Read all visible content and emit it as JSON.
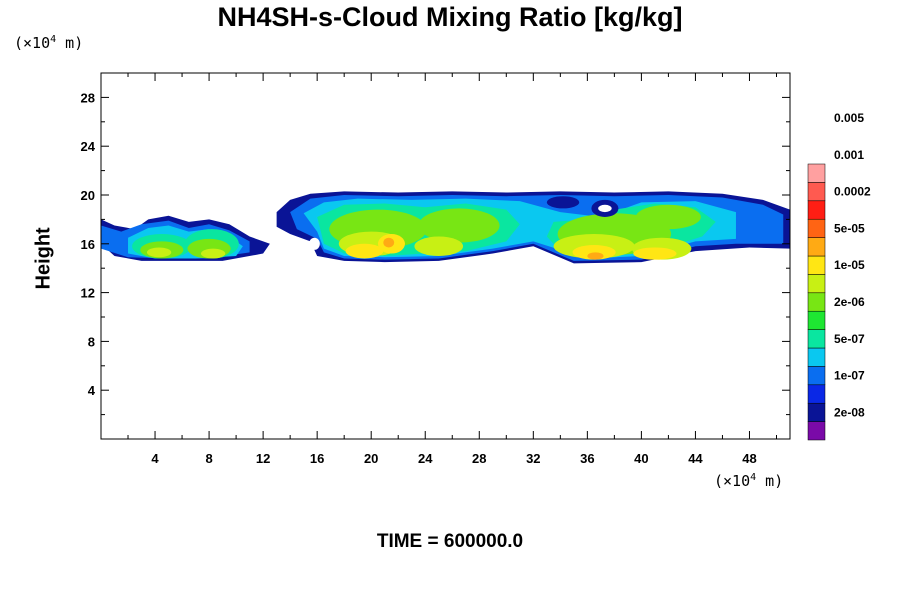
{
  "chart_data": {
    "type": "heatmap",
    "title": "NH4SH-s-Cloud Mixing Ratio [kg/kg]",
    "ylabel": "Height",
    "x_unit_label": {
      "prefix": "(×10",
      "exp": "4",
      "suffix": " m)"
    },
    "y_unit_label": {
      "prefix": "(×10",
      "exp": "4",
      "suffix": " m)"
    },
    "xlim": [
      0,
      51
    ],
    "ylim": [
      0,
      30
    ],
    "x_ticks": [
      4,
      8,
      12,
      16,
      20,
      24,
      28,
      32,
      36,
      40,
      44,
      48
    ],
    "y_ticks": [
      4,
      8,
      12,
      16,
      20,
      24,
      28
    ],
    "colorbar": {
      "levels": [
        "2e-08",
        "1e-07",
        "5e-07",
        "2e-06",
        "1e-05",
        "5e-05",
        "0.0002",
        "0.001",
        "0.005"
      ],
      "colors": [
        "#7a0aa8",
        "#0a1496",
        "#0a28e6",
        "#0a6ef0",
        "#0ac8f0",
        "#0ae6a0",
        "#1ee632",
        "#78e614",
        "#c8f014",
        "#ffe614",
        "#ffaa14",
        "#ff6414",
        "#ff1e14",
        "#ff5a50",
        "#ffa0a0"
      ]
    },
    "cloud_layer": {
      "bottom_height": 14.5,
      "top_height": 20.3,
      "x_range": [
        0,
        51
      ]
    },
    "footer": "TIME = 600000.0"
  }
}
